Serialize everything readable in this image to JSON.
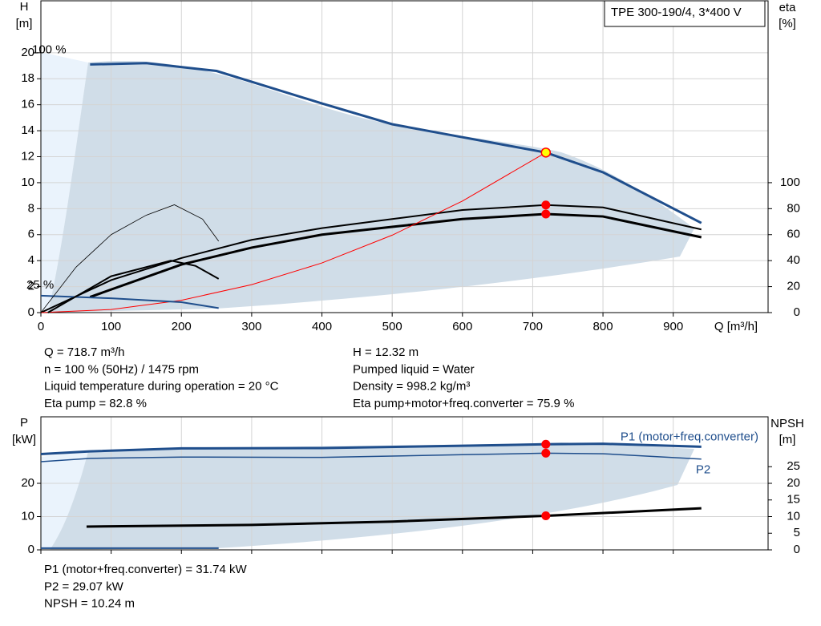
{
  "title_box": "TPE 300-190/4, 3*400 V",
  "info_left": [
    "Q = 718.7 m³/h",
    "n = 100 % (50Hz) / 1475 rpm",
    "Liquid temperature during operation = 20 °C",
    "Eta pump = 82.8 %"
  ],
  "info_right": [
    "H = 12.32 m",
    "Pumped liquid = Water",
    "Density = 998.2 kg/m³",
    "Eta pump+motor+freq.converter = 75.9 %"
  ],
  "info_bottom": [
    "P1 (motor+freq.converter) = 31.74 kW",
    "P2 = 29.07 kW",
    "NPSH = 10.24 m"
  ],
  "chart_data": [
    {
      "type": "line",
      "y_label": "H",
      "y_unit": "[m]",
      "y2_label": "eta",
      "y2_unit": "[%]",
      "x_label": "Q [m³/h]",
      "speed_labels": [
        "100 %",
        "25 %"
      ],
      "duty_q": 718.7,
      "xlim": [
        0,
        1035
      ],
      "xticks": [
        0,
        100,
        200,
        300,
        400,
        500,
        600,
        700,
        800,
        900
      ],
      "ylim": [
        0,
        24
      ],
      "yticks": [
        0,
        2,
        4,
        6,
        8,
        10,
        12,
        14,
        16,
        18,
        20
      ],
      "y2lim": [
        0,
        240
      ],
      "y2ticks": [
        0,
        20,
        40,
        60,
        80,
        100
      ],
      "series": [
        {
          "color": "#1f4e8c",
          "width": 3,
          "marker_color": "#ffff00",
          "x": [
            70,
            150,
            250,
            400,
            500,
            600,
            718.7,
            800,
            940
          ],
          "values": [
            19.1,
            19.2,
            18.6,
            16.1,
            14.5,
            13.5,
            12.32,
            10.8,
            6.9
          ]
        },
        {
          "color": "#000000",
          "width": 2,
          "axis": "y2",
          "marker_color": "#ff0000",
          "x": [
            0,
            100,
            200,
            300,
            400,
            500,
            600,
            718.7,
            800,
            940
          ],
          "values": [
            0,
            25,
            42,
            56,
            65,
            72,
            79,
            82.8,
            81,
            64
          ]
        },
        {
          "color": "#000000",
          "width": 3,
          "axis": "y2",
          "marker_color": "#ff0000",
          "x": [
            70,
            200,
            300,
            400,
            500,
            600,
            718.7,
            800,
            940
          ],
          "values": [
            12,
            37,
            50,
            60,
            66,
            72,
            75.9,
            74,
            58
          ]
        },
        {
          "color": "#ff0000",
          "width": 1,
          "x": [
            0,
            100,
            200,
            300,
            400,
            500,
            600,
            718.7
          ],
          "values": [
            0,
            0.24,
            0.95,
            2.15,
            3.82,
            5.96,
            8.59,
            12.32
          ]
        },
        {
          "color": "#1f4e8c",
          "width": 2,
          "x": [
            0,
            100,
            200,
            253
          ],
          "values": [
            1.3,
            1.1,
            0.8,
            0.35
          ]
        },
        {
          "color": "#000000",
          "width": 0.8,
          "axis": "y2",
          "x": [
            0,
            50,
            100,
            150,
            190,
            230,
            253
          ],
          "values": [
            0,
            35,
            60,
            75,
            83,
            72,
            55
          ]
        },
        {
          "color": "#000000",
          "width": 2,
          "axis": "y2",
          "x": [
            10,
            100,
            150,
            185,
            220,
            253
          ],
          "values": [
            0,
            28,
            35,
            40,
            36,
            26
          ]
        }
      ]
    },
    {
      "type": "line",
      "y_label": "P",
      "y_unit": "[kW]",
      "y2_label": "NPSH",
      "y2_unit": "[m]",
      "duty_q": 718.7,
      "xlim": [
        0,
        1035
      ],
      "xticks": [
        0,
        100,
        200,
        300,
        400,
        500,
        600,
        700,
        800,
        900
      ],
      "ylim": [
        0,
        40
      ],
      "yticks": [
        0,
        10,
        20
      ],
      "y2lim": [
        0,
        40
      ],
      "y2ticks": [
        0,
        5,
        10,
        15,
        20,
        25
      ],
      "series": [
        {
          "name": "P1 (motor+freq.converter)",
          "color": "#1f4e8c",
          "width": 3,
          "marker_color": "#ff0000",
          "x": [
            0,
            70,
            200,
            400,
            600,
            718.7,
            800,
            940
          ],
          "values": [
            28.8,
            29.6,
            30.5,
            30.6,
            31.3,
            31.74,
            31.9,
            31.0
          ]
        },
        {
          "name": "P2",
          "color": "#1f4e8c",
          "width": 1.5,
          "marker_color": "#ff0000",
          "x": [
            0,
            70,
            200,
            400,
            600,
            718.7,
            800,
            940
          ],
          "values": [
            26.5,
            27.5,
            27.9,
            27.8,
            28.6,
            29.07,
            28.9,
            27.3
          ]
        },
        {
          "color": "#000000",
          "width": 3,
          "axis": "y2",
          "marker_color": "#ff0000",
          "x": [
            65,
            300,
            500,
            718.7,
            940
          ],
          "values": [
            7,
            7.5,
            8.5,
            10.24,
            12.5
          ]
        },
        {
          "color": "#1f4e8c",
          "width": 2,
          "x": [
            0,
            253
          ],
          "values": [
            0.5,
            0.5
          ]
        }
      ]
    }
  ]
}
